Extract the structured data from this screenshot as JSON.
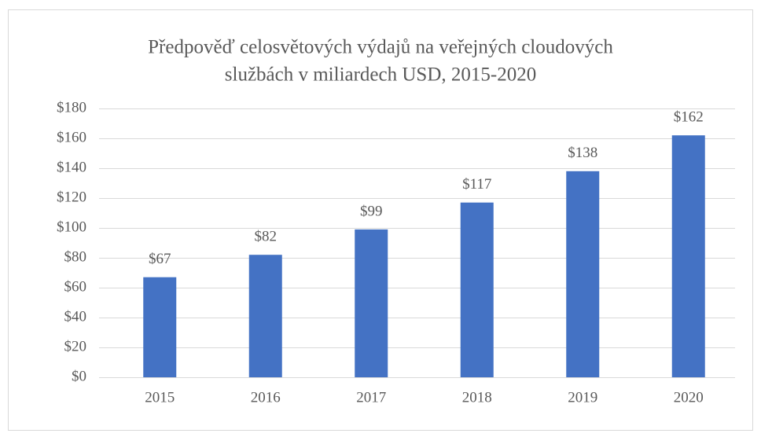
{
  "chart_data": {
    "type": "bar",
    "title": [
      "Předpověď celosvětových výdajů na veřejných cloudových",
      "službách  v miliardech USD, 2015-2020"
    ],
    "categories": [
      "2015",
      "2016",
      "2017",
      "2018",
      "2019",
      "2020"
    ],
    "values": [
      67,
      82,
      99,
      117,
      138,
      162
    ],
    "value_labels": [
      "$67",
      "$82",
      "$99",
      "$117",
      "$138",
      "$162"
    ],
    "color": "#4472c4",
    "ylim": [
      0,
      180
    ],
    "yticks": [
      {
        "value": 0,
        "label": "$0"
      },
      {
        "value": 20,
        "label": "$20"
      },
      {
        "value": 40,
        "label": "$40"
      },
      {
        "value": 60,
        "label": "$60"
      },
      {
        "value": 80,
        "label": "$80"
      },
      {
        "value": 100,
        "label": "$100"
      },
      {
        "value": 120,
        "label": "$120"
      },
      {
        "value": 140,
        "label": "$140"
      },
      {
        "value": 160,
        "label": "$160"
      },
      {
        "value": 180,
        "label": "$180"
      }
    ],
    "grid": true
  }
}
